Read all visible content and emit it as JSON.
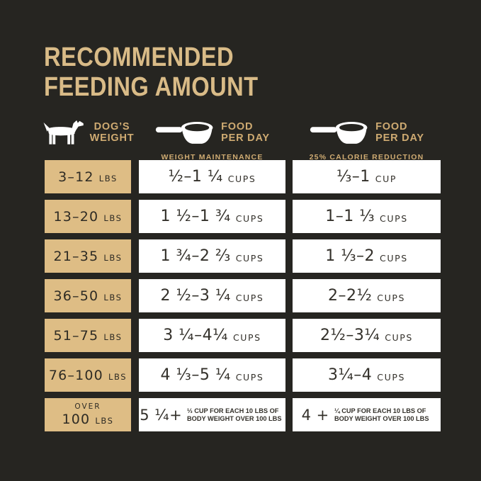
{
  "colors": {
    "background": "#262521",
    "gold_title": "#d9bb87",
    "gold_label": "#cfab72",
    "tan_cell": "#debd85",
    "cell_text_dark": "#2e2b24",
    "white_cell": "#ffffff",
    "amount_text": "#33302a",
    "icon_white": "#ffffff"
  },
  "title": {
    "line1": "RECOMMENDED",
    "line2": "FEEDING AMOUNT"
  },
  "columns": {
    "weight": {
      "icon": "dog-icon",
      "line1": "DOG’S",
      "line2": "WEIGHT"
    },
    "maintenance": {
      "icon": "measuring-cup-icon",
      "line1": "FOOD",
      "line2": "PER DAY",
      "subtitle": "WEIGHT MAINTENANCE"
    },
    "reduction": {
      "icon": "measuring-cup-icon",
      "line1": "FOOD",
      "line2": "PER DAY",
      "subtitle": "25% CALORIE REDUCTION"
    }
  },
  "table": {
    "rows": [
      {
        "weight": "3–12",
        "weight_unit": "LBS",
        "maintenance": {
          "amount": "½–1 ¼",
          "unit": "CUPS"
        },
        "reduction": {
          "amount": "⅓–1",
          "unit": "CUP"
        }
      },
      {
        "weight": "13–20",
        "weight_unit": "LBS",
        "maintenance": {
          "amount": "1 ½–1 ¾",
          "unit": "CUPS"
        },
        "reduction": {
          "amount": "1–1 ⅓",
          "unit": "CUPS"
        }
      },
      {
        "weight": "21–35",
        "weight_unit": "LBS",
        "maintenance": {
          "amount": "1 ¾–2 ⅔",
          "unit": "CUPS"
        },
        "reduction": {
          "amount": "1 ⅓–2",
          "unit": "CUPS"
        }
      },
      {
        "weight": "36–50",
        "weight_unit": "LBS",
        "maintenance": {
          "amount": "2 ½–3 ¼",
          "unit": "CUPS"
        },
        "reduction": {
          "amount": "2–2½",
          "unit": "CUPS"
        }
      },
      {
        "weight": "51–75",
        "weight_unit": "LBS",
        "maintenance": {
          "amount": "3 ¼–4¼",
          "unit": "CUPS"
        },
        "reduction": {
          "amount": "2½–3¼",
          "unit": "CUPS"
        }
      },
      {
        "weight": "76–100",
        "weight_unit": "LBS",
        "maintenance": {
          "amount": "4 ⅓–5 ¼",
          "unit": "CUPS"
        },
        "reduction": {
          "amount": "3¼–4",
          "unit": "CUPS"
        }
      },
      {
        "weight_over": "OVER",
        "weight": "100",
        "weight_unit": "LBS",
        "maintenance": {
          "amount": "5 ¼+",
          "note_line1": "⅓ CUP FOR EACH 10 LBS OF",
          "note_line2": "BODY WEIGHT OVER 100 LBS"
        },
        "reduction": {
          "amount": "4 +",
          "note_line1": "¼ CUP FOR EACH 10 LBS OF",
          "note_line2": "BODY WEIGHT OVER 100 LBS"
        }
      }
    ]
  },
  "chart_data": {
    "type": "table",
    "title": "RECOMMENDED FEEDING AMOUNT",
    "columns": [
      "DOG'S WEIGHT",
      "FOOD PER DAY — WEIGHT MAINTENANCE",
      "FOOD PER DAY — 25% CALORIE REDUCTION"
    ],
    "rows": [
      [
        "3–12 LBS",
        "½–1 ¼ CUPS",
        "⅓–1 CUP"
      ],
      [
        "13–20 LBS",
        "1 ½–1 ¾ CUPS",
        "1–1 ⅓ CUPS"
      ],
      [
        "21–35 LBS",
        "1 ¾–2 ⅔ CUPS",
        "1 ⅓–2 CUPS"
      ],
      [
        "36–50 LBS",
        "2 ½–3 ¼ CUPS",
        "2–2½ CUPS"
      ],
      [
        "51–75 LBS",
        "3 ¼–4¼ CUPS",
        "2½–3¼ CUPS"
      ],
      [
        "76–100 LBS",
        "4 ⅓–5 ¼ CUPS",
        "3¼–4 CUPS"
      ],
      [
        "OVER 100 LBS",
        "5 ¼ + ⅓ CUP FOR EACH 10 LBS OF BODY WEIGHT OVER 100 LBS",
        "4 + ¼ CUP FOR EACH 10 LBS OF BODY WEIGHT OVER 100 LBS"
      ]
    ]
  }
}
